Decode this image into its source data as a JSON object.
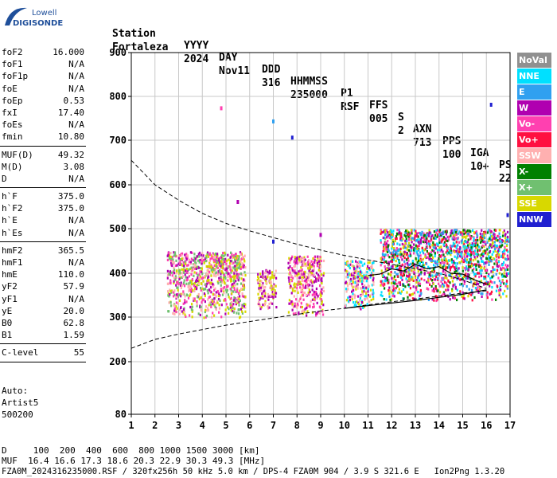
{
  "logo": {
    "line1": "Lowell",
    "line2": "DIGISONDE"
  },
  "header": {
    "labels": [
      "Station",
      "YYYY",
      "DAY",
      "DDD",
      "HHMMSS",
      "P1",
      "FFS",
      "S",
      "AXN",
      "PPS",
      "IGA",
      "PS"
    ],
    "values": [
      "Fortaleza",
      "2024",
      "Nov11",
      "316",
      "235000",
      "RSF",
      "005",
      "2",
      "713",
      "100",
      "10+",
      "22"
    ]
  },
  "params": {
    "group1": [
      {
        "k": "foF2",
        "v": "16.000"
      },
      {
        "k": "foF1",
        "v": "N/A"
      },
      {
        "k": "foF1p",
        "v": "N/A"
      },
      {
        "k": "foE",
        "v": "N/A"
      },
      {
        "k": "foEp",
        "v": "0.53"
      },
      {
        "k": "fxI",
        "v": "17.40"
      },
      {
        "k": "foEs",
        "v": "N/A"
      },
      {
        "k": "fmin",
        "v": "10.80"
      }
    ],
    "group2": [
      {
        "k": "MUF(D)",
        "v": "49.32"
      },
      {
        "k": "M(D)",
        "v": "3.08"
      },
      {
        "k": "D",
        "v": "N/A"
      }
    ],
    "group3": [
      {
        "k": "h`F",
        "v": "375.0"
      },
      {
        "k": "h`F2",
        "v": "375.0"
      },
      {
        "k": "h`E",
        "v": "N/A"
      },
      {
        "k": "h`Es",
        "v": "N/A"
      }
    ],
    "group4": [
      {
        "k": "hmF2",
        "v": "365.5"
      },
      {
        "k": "hmF1",
        "v": "N/A"
      },
      {
        "k": "hmE",
        "v": "110.0"
      },
      {
        "k": "yF2",
        "v": "57.9"
      },
      {
        "k": "yF1",
        "v": "N/A"
      },
      {
        "k": "yE",
        "v": "20.0"
      },
      {
        "k": "B0",
        "v": "62.8"
      },
      {
        "k": "B1",
        "v": "1.59"
      }
    ],
    "group5": [
      {
        "k": "C-level",
        "v": "55"
      }
    ]
  },
  "side_notes": [
    "Auto:",
    "Artist5",
    "500200"
  ],
  "legend": [
    {
      "label": "NoVal",
      "color": "#909090"
    },
    {
      "label": "NNE",
      "color": "#00e0ff"
    },
    {
      "label": "E",
      "color": "#30a0f0"
    },
    {
      "label": "W",
      "color": "#b000b0"
    },
    {
      "label": "Vo-",
      "color": "#ff40b0"
    },
    {
      "label": "Vo+",
      "color": "#ff1040"
    },
    {
      "label": "SSW",
      "color": "#ffb0b0"
    },
    {
      "label": "X-",
      "color": "#008000"
    },
    {
      "label": "X+",
      "color": "#70c070"
    },
    {
      "label": "SSE",
      "color": "#d8d800"
    },
    {
      "label": "NNW",
      "color": "#2020d0"
    }
  ],
  "footer": {
    "d_row": "D     100  200  400  600  800 1000 1500 3000 [km]",
    "muf_row": "MUF  16.4 16.6 17.3 18.6 20.3 22.9 30.3 49.3 [MHz]",
    "file_row": "FZA0M_2024316235000.RSF / 320fx256h 50 kHz 5.0 km / DPS-4 FZA0M 904 / 3.9 S 321.6 E   Ion2Png 1.3.20"
  },
  "chart_data": {
    "type": "scatter",
    "x_ticks": [
      1,
      2,
      3,
      4,
      5,
      6,
      7,
      8,
      9,
      10,
      11,
      12,
      13,
      14,
      15,
      16,
      17
    ],
    "y_ticks": [
      80,
      200,
      300,
      400,
      500,
      600,
      700,
      800,
      900
    ],
    "xlim": [
      1,
      17
    ],
    "ylim": [
      80,
      900
    ],
    "grid": true,
    "legend_position": "right",
    "echo_clusters": [
      {
        "x_range": [
          2.5,
          5.8
        ],
        "y_range": [
          300,
          450
        ],
        "colors": [
          "#d8d800",
          "#b000b0",
          "#ffb0b0",
          "#70c070",
          "#ff40b0"
        ]
      },
      {
        "x_range": [
          6.3,
          7.1
        ],
        "y_range": [
          320,
          410
        ],
        "colors": [
          "#d8d800",
          "#ffb0b0",
          "#b000b0"
        ]
      },
      {
        "x_range": [
          7.6,
          9.1
        ],
        "y_range": [
          305,
          440
        ],
        "colors": [
          "#ffb0b0",
          "#d8d800",
          "#b000b0",
          "#ff40b0"
        ]
      },
      {
        "x_range": [
          10.0,
          11.2
        ],
        "y_range": [
          320,
          430
        ],
        "colors": [
          "#d8d800",
          "#b000b0",
          "#ffb0b0",
          "#00e0ff"
        ]
      },
      {
        "x_range": [
          11.5,
          16.9
        ],
        "y_range": [
          340,
          500
        ],
        "colors": [
          "#00e0ff",
          "#b000b0",
          "#d8d800",
          "#ff40b0",
          "#30a0f0",
          "#008000",
          "#ff1040"
        ]
      }
    ],
    "dashed_upper": [
      [
        1,
        655
      ],
      [
        2,
        600
      ],
      [
        3,
        565
      ],
      [
        4,
        535
      ],
      [
        5,
        512
      ],
      [
        6,
        495
      ],
      [
        7,
        480
      ],
      [
        8,
        465
      ],
      [
        9,
        452
      ],
      [
        10,
        440
      ],
      [
        11,
        430
      ],
      [
        12,
        420
      ],
      [
        13,
        410
      ],
      [
        14,
        400
      ],
      [
        15,
        385
      ],
      [
        16,
        365
      ]
    ],
    "dashed_lower": [
      [
        1,
        230
      ],
      [
        2,
        250
      ],
      [
        3,
        262
      ],
      [
        4,
        272
      ],
      [
        5,
        282
      ],
      [
        6,
        290
      ],
      [
        7,
        298
      ],
      [
        8,
        306
      ],
      [
        9,
        314
      ],
      [
        10,
        320
      ],
      [
        11,
        328
      ],
      [
        12,
        335
      ],
      [
        13,
        341
      ],
      [
        14,
        348
      ],
      [
        15,
        355
      ],
      [
        16,
        360
      ]
    ],
    "solid_trace": [
      [
        11.0,
        395
      ],
      [
        11.5,
        398
      ],
      [
        12.0,
        410
      ],
      [
        12.5,
        405
      ],
      [
        13.0,
        420
      ],
      [
        13.5,
        410
      ],
      [
        14.0,
        415
      ],
      [
        14.5,
        400
      ],
      [
        15.0,
        398
      ],
      [
        15.5,
        385
      ],
      [
        16.0,
        375
      ]
    ],
    "solid_lower": [
      [
        10.0,
        320
      ],
      [
        11.0,
        326
      ],
      [
        12.0,
        332
      ],
      [
        13.0,
        338
      ],
      [
        14.0,
        345
      ],
      [
        15.0,
        352
      ],
      [
        16.0,
        362
      ]
    ],
    "isolated_points": [
      {
        "x": 7.8,
        "y": 705,
        "color": "#2020d0"
      },
      {
        "x": 7.0,
        "y": 742,
        "color": "#30a0f0"
      },
      {
        "x": 4.8,
        "y": 772,
        "color": "#ff40b0"
      },
      {
        "x": 16.2,
        "y": 780,
        "color": "#2020d0"
      },
      {
        "x": 5.5,
        "y": 560,
        "color": "#b000b0"
      },
      {
        "x": 16.9,
        "y": 530,
        "color": "#2020d0"
      },
      {
        "x": 9.0,
        "y": 485,
        "color": "#b000b0"
      },
      {
        "x": 7.0,
        "y": 470,
        "color": "#2020d0"
      }
    ]
  }
}
